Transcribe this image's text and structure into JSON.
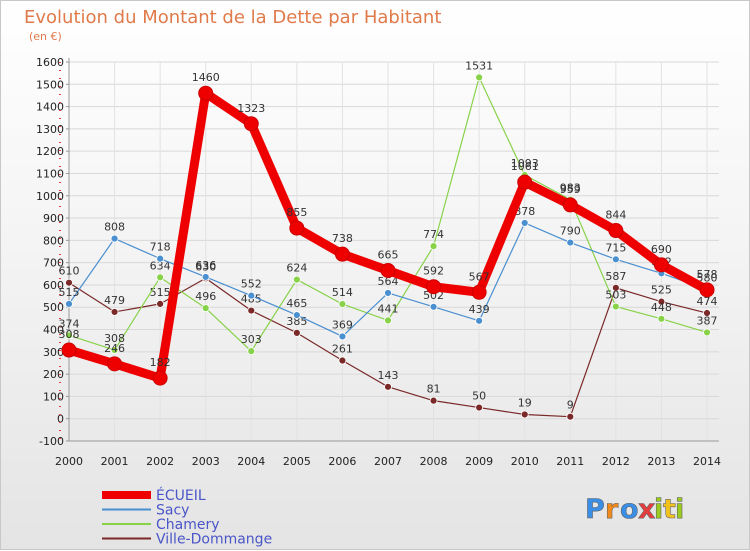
{
  "chart_data": {
    "type": "line",
    "title": "Evolution du Montant de la Dette par Habitant",
    "subtitle": "(en €)",
    "xlabel": "",
    "ylabel": "",
    "x": [
      "2000",
      "2001",
      "2002",
      "2003",
      "2004",
      "2005",
      "2006",
      "2007",
      "2008",
      "2009",
      "2010",
      "2011",
      "2012",
      "2013",
      "2014"
    ],
    "ylim": [
      -100,
      1600
    ],
    "yticks": [
      "-100",
      "0",
      "100",
      "200",
      "300",
      "400",
      "500",
      "600",
      "700",
      "800",
      "900",
      "1000",
      "1100",
      "1200",
      "1300",
      "1400",
      "1500",
      "1600"
    ],
    "grid": true,
    "legend_position": "bottom-left",
    "series": [
      {
        "name": "ÉCUEIL",
        "color": "#ee0000",
        "values": [
          308,
          246,
          182,
          1460,
          1323,
          855,
          738,
          665,
          592,
          567,
          1061,
          959,
          844,
          690,
          578
        ],
        "labels": [
          "308",
          "246",
          "182",
          "1460",
          "1323",
          "855",
          "738",
          "665",
          "592",
          "567",
          "1061",
          "959",
          "844",
          "690",
          "578"
        ]
      },
      {
        "name": "Sacy",
        "color": "#4a8fcf",
        "values": [
          515,
          808,
          718,
          636,
          552,
          465,
          369,
          564,
          502,
          439,
          878,
          790,
          715,
          652,
          580
        ],
        "labels": [
          "515",
          "808",
          "718",
          "636",
          "552",
          "465",
          "369",
          "564",
          "502",
          "439",
          "878",
          "790",
          "715",
          "652",
          "580"
        ]
      },
      {
        "name": "Chamery",
        "color": "#88d24a",
        "values": [
          374,
          308,
          634,
          496,
          303,
          624,
          514,
          441,
          774,
          1531,
          1093,
          983,
          503,
          448,
          387
        ],
        "labels": [
          "374",
          "308",
          "634",
          "496",
          "303",
          "624",
          "514",
          "441",
          "774",
          "1531",
          "1093",
          "983",
          "503",
          "448",
          "387"
        ]
      },
      {
        "name": "Ville-Dommange",
        "color": "#7a2828",
        "values": [
          610,
          479,
          515,
          630,
          485,
          385,
          261,
          143,
          81,
          50,
          19,
          9,
          587,
          525,
          474
        ],
        "labels": [
          "610",
          "479",
          "515",
          "630",
          "485",
          "385",
          "261",
          "143",
          "81",
          "50",
          "19",
          "9",
          "587",
          "525",
          "474"
        ]
      }
    ]
  },
  "logo": {
    "letters": [
      "P",
      "r",
      "o",
      "x",
      "i",
      "t",
      "i"
    ],
    "colors": [
      "#3a8ee6",
      "#f28a1c",
      "#3a8ee6",
      "#e53d3d",
      "#9acb1e",
      "#f2c21c",
      "#9acb1e"
    ]
  }
}
